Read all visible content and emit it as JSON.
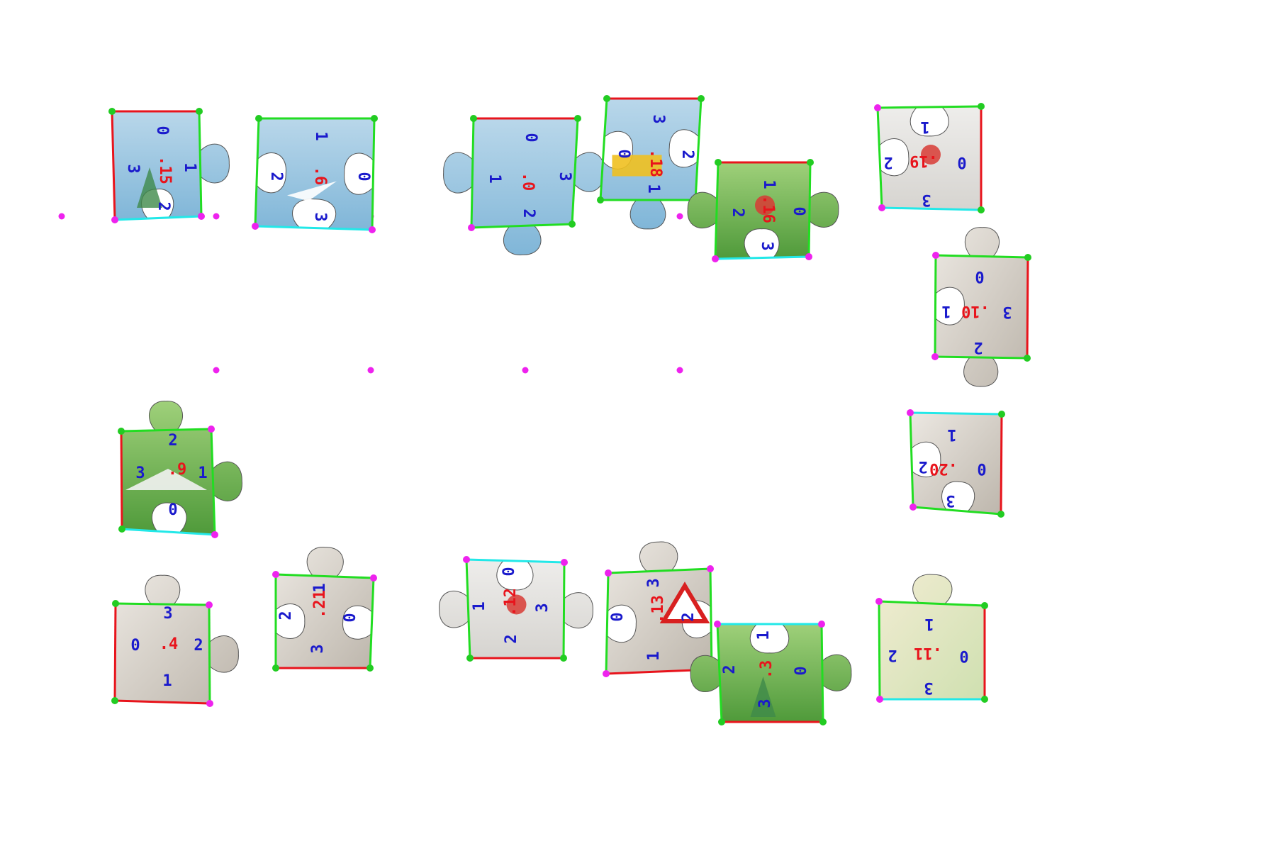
{
  "colors": {
    "edge_top": "#e8141c",
    "edge_side": "#22dd22",
    "edge_bottom": "#22e8e8",
    "corner_green": "#22cc22",
    "corner_magenta": "#ee22ee",
    "piece_id": "#e8141c",
    "edge_index": "#1a1acc",
    "sky_top": "#b9d7ea",
    "sky_bottom": "#7fb4d6",
    "grass": "#74b84d",
    "rock": "#d8d2c8",
    "paper": "#e6e4e0"
  },
  "pieces": [
    {
      "id": ".15",
      "theme": "sky-tree",
      "edges": [
        "0",
        "1",
        "2",
        "3"
      ]
    },
    {
      "id": ".6",
      "theme": "sky-plane",
      "edges": [
        "1",
        "2",
        "3",
        "0"
      ]
    },
    {
      "id": ".0",
      "theme": "sky-cloud",
      "edges": [
        "0",
        "1",
        "2",
        "3"
      ]
    },
    {
      "id": ".18",
      "theme": "sky-machine",
      "edges": [
        "3",
        "0",
        "1",
        "2"
      ]
    },
    {
      "id": ".16",
      "theme": "grass-figure",
      "edges": [
        "1",
        "2",
        "3",
        "0"
      ]
    },
    {
      "id": ".19",
      "theme": "paper-figure",
      "edges": [
        "1",
        "2",
        "3",
        "0"
      ]
    },
    {
      "id": ".10",
      "theme": "rock",
      "edges": [
        "0",
        "1",
        "2",
        "3"
      ]
    },
    {
      "id": ".9",
      "theme": "grass-tent",
      "edges": [
        "2",
        "3",
        "0",
        "1"
      ]
    },
    {
      "id": ".20",
      "theme": "rock",
      "edges": [
        "1",
        "2",
        "3",
        "0"
      ]
    },
    {
      "id": ".4",
      "theme": "rock",
      "edges": [
        "3",
        "0",
        "1",
        "2"
      ]
    },
    {
      "id": ".21",
      "theme": "rock-curve",
      "edges": [
        "1",
        "2",
        "3",
        "0"
      ]
    },
    {
      "id": ".12",
      "theme": "paper-figure",
      "edges": [
        "0",
        "1",
        "2",
        "3"
      ]
    },
    {
      "id": ".13",
      "theme": "rock-sign",
      "edges": [
        "3",
        "0",
        "1",
        "2"
      ]
    },
    {
      "id": ".3",
      "theme": "grass-tree",
      "edges": [
        "1",
        "2",
        "3",
        "0"
      ]
    },
    {
      "id": ".11",
      "theme": "sand",
      "edges": [
        "1",
        "2",
        "3",
        "0"
      ]
    }
  ],
  "grid_point_count": 10
}
